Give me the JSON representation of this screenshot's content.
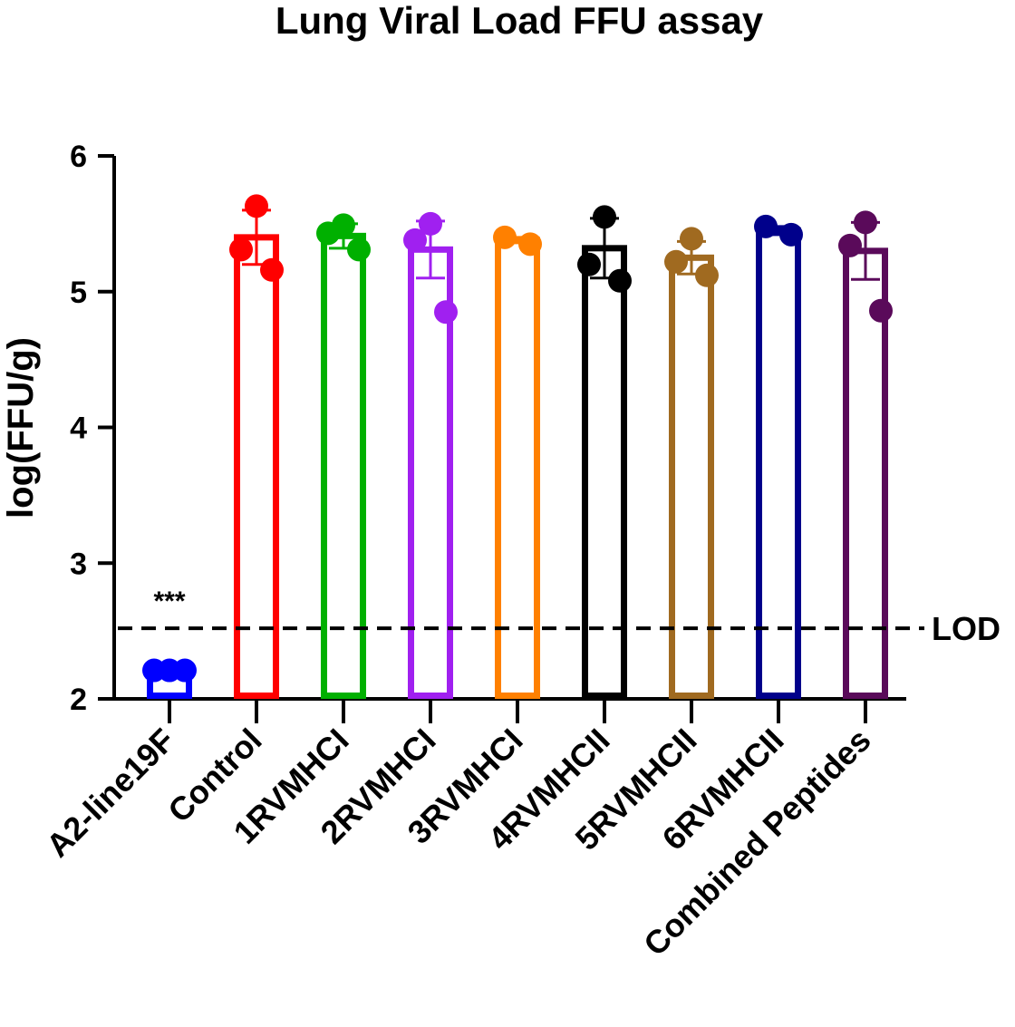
{
  "chart_data": {
    "type": "bar",
    "title": "Lung Viral Load FFU assay",
    "xlabel": "",
    "ylabel": "log(FFU/g)",
    "ylim": [
      2,
      6
    ],
    "yticks": [
      2,
      3,
      4,
      5,
      6
    ],
    "grid": false,
    "legend": "none",
    "bar_style": "open bars with individual points and SD error bars",
    "categories": [
      "A2-line19F",
      "Control",
      "1RVMHCI",
      "2RVMHCI",
      "3RVMHCI",
      "4RVMHCII",
      "5RVMHCII",
      "6RVMHCII",
      "Combined Peptides"
    ],
    "series": [
      {
        "category": "A2-line19F",
        "color": "#0000ff",
        "mean": 2.21,
        "error": 0,
        "points": [
          2.21,
          2.21,
          2.21
        ]
      },
      {
        "category": "Control",
        "color": "#ff0000",
        "mean": 5.4,
        "error": 0.2,
        "points": [
          5.63,
          5.31,
          5.16
        ]
      },
      {
        "category": "1RVMHCI",
        "color": "#00b000",
        "mean": 5.41,
        "error": 0.09,
        "points": [
          5.49,
          5.43,
          5.31
        ]
      },
      {
        "category": "2RVMHCI",
        "color": "#a020f0",
        "mean": 5.31,
        "error": 0.21,
        "points": [
          5.5,
          5.38,
          4.85
        ]
      },
      {
        "category": "3RVMHCI",
        "color": "#ff8000",
        "mean": 5.38,
        "error": 0.02,
        "points": [
          5.4,
          5.35
        ]
      },
      {
        "category": "4RVMHCII",
        "color": "#000000",
        "mean": 5.32,
        "error": 0.22,
        "points": [
          5.55,
          5.2,
          5.08
        ]
      },
      {
        "category": "5RVMHCII",
        "color": "#a06a20",
        "mean": 5.25,
        "error": 0.12,
        "points": [
          5.39,
          5.22,
          5.12
        ]
      },
      {
        "category": "6RVMHCII",
        "color": "#00008b",
        "mean": 5.45,
        "error": 0.03,
        "points": [
          5.48,
          5.42
        ]
      },
      {
        "category": "Combined Peptides",
        "color": "#5a0a5a",
        "mean": 5.3,
        "error": 0.21,
        "points": [
          5.51,
          5.34,
          4.86
        ]
      }
    ],
    "reference_line": {
      "label": "LOD",
      "y": 2.52,
      "style": "dashed"
    },
    "annotations": [
      {
        "text": "***",
        "category": "A2-line19F",
        "y": 2.8
      }
    ]
  }
}
